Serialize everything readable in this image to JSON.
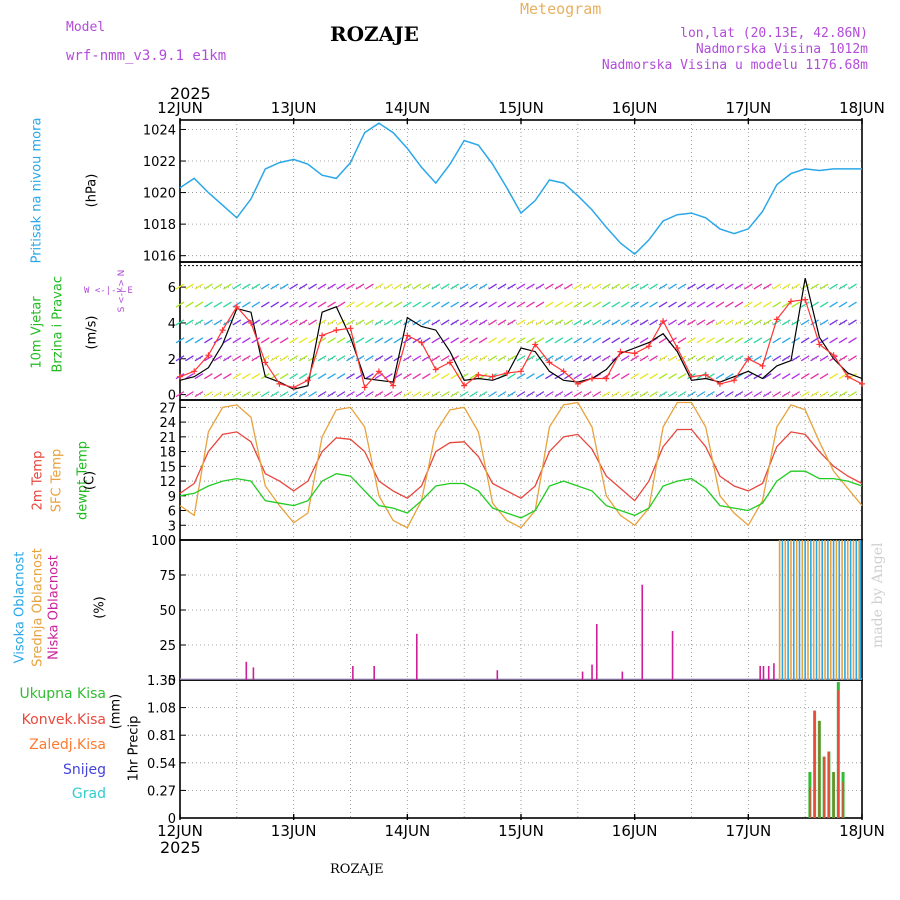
{
  "header": {
    "model_label": "Model",
    "model_name": "wrf-nmm_v3.9.1 e1km",
    "location": "ROZAJE",
    "meteogram_label": "Meteogram",
    "coords": "lon,lat (20.13E, 42.86N)",
    "altitude": "Nadmorska Visina 1012m",
    "model_altitude": "Nadmorska Visina u modelu 1176.68m"
  },
  "time_axis": {
    "year": "2025",
    "days": [
      "12JUN",
      "13JUN",
      "14JUN",
      "15JUN",
      "16JUN",
      "17JUN",
      "18JUN"
    ]
  },
  "footer": {
    "station": "ROZAJE",
    "credit": "made by Angel"
  },
  "colors": {
    "pressure": "#2aa7e8",
    "temp2m": "#e8463c",
    "sfc_temp": "#e8a23c",
    "dewpt": "#22cc22",
    "wind_speed": "#000000",
    "wind_gust": "#ff3333",
    "cloud_high": "#29a7e8",
    "cloud_mid": "#e8a23c",
    "cloud_low": "#cc1f99",
    "precip_total": "#33bb33",
    "precip_conv": "#e84a3c",
    "precip_frz": "#ff7a2e",
    "snow": "#4444dd",
    "hail": "#33cccc"
  },
  "chart_data": [
    {
      "type": "line",
      "name": "pressure",
      "ylabel_left": "Pritisak na nivou mora",
      "ylabel_unit": "(hPa)",
      "ylim": [
        1015.6,
        1024.6
      ],
      "yticks": [
        1016,
        1018,
        1020,
        1022,
        1024
      ],
      "x": [
        0,
        3,
        6,
        9,
        12,
        15,
        18,
        21,
        24,
        27,
        30,
        33,
        36,
        39,
        42,
        45,
        48,
        51,
        54,
        57,
        60,
        63,
        66,
        69,
        72,
        75,
        78,
        81,
        84,
        87,
        90,
        93,
        96,
        99,
        102,
        105,
        108,
        111,
        114,
        117,
        120,
        123,
        126,
        129,
        132,
        135,
        138,
        141,
        144
      ],
      "series": [
        {
          "values": [
            1020.3,
            1020.9,
            1020.0,
            1019.2,
            1018.4,
            1019.6,
            1021.5,
            1021.9,
            1022.1,
            1021.8,
            1021.1,
            1020.9,
            1021.9,
            1023.8,
            1024.4,
            1023.8,
            1022.8,
            1021.6,
            1020.6,
            1021.8,
            1023.3,
            1023.0,
            1021.8,
            1020.3,
            1018.7,
            1019.5,
            1020.8,
            1020.6,
            1019.8,
            1018.9,
            1017.8,
            1016.8,
            1016.1,
            1017.0,
            1018.2,
            1018.6,
            1018.7,
            1018.4,
            1017.7,
            1017.4,
            1017.7,
            1018.8,
            1020.5,
            1021.2,
            1021.5,
            1021.4,
            1021.5,
            1021.5,
            1021.5
          ]
        }
      ]
    },
    {
      "type": "line",
      "name": "wind",
      "ylabel_left": "10m Vjetar",
      "ylabel_right": "Brzina i Pravac",
      "ylabel_unit": "(m/s)",
      "compass": "W <-|-> E",
      "compass_v": "S <-|-> N",
      "ylim": [
        -0.3,
        7.4
      ],
      "yticks": [
        0,
        2,
        4,
        6
      ],
      "x": [
        0,
        3,
        6,
        9,
        12,
        15,
        18,
        21,
        24,
        27,
        30,
        33,
        36,
        39,
        42,
        45,
        48,
        51,
        54,
        57,
        60,
        63,
        66,
        69,
        72,
        75,
        78,
        81,
        84,
        87,
        90,
        93,
        96,
        99,
        102,
        105,
        108,
        111,
        114,
        117,
        120,
        123,
        126,
        129,
        132,
        135,
        138,
        141,
        144
      ],
      "series": [
        {
          "name": "speed",
          "values": [
            0.8,
            1.0,
            1.5,
            2.8,
            4.8,
            4.6,
            1.0,
            0.7,
            0.3,
            0.5,
            4.6,
            4.9,
            3.2,
            0.9,
            0.8,
            0.7,
            4.3,
            3.8,
            3.6,
            2.4,
            0.8,
            0.9,
            0.8,
            1.1,
            2.6,
            2.4,
            1.3,
            0.8,
            0.7,
            0.9,
            1.4,
            2.3,
            2.6,
            2.9,
            3.4,
            2.4,
            0.8,
            0.9,
            0.7,
            1.0,
            1.3,
            0.9,
            1.6,
            1.9,
            6.5,
            3.2,
            2.0,
            1.2,
            0.9
          ]
        },
        {
          "name": "gust",
          "values": [
            1.0,
            1.3,
            2.2,
            3.6,
            4.9,
            4.0,
            1.8,
            0.6,
            0.4,
            0.8,
            3.3,
            3.6,
            3.7,
            0.4,
            1.3,
            0.5,
            3.3,
            2.9,
            1.4,
            1.8,
            0.5,
            1.1,
            1.0,
            1.2,
            1.3,
            2.8,
            1.8,
            1.3,
            0.6,
            0.9,
            0.9,
            2.4,
            2.3,
            2.7,
            4.1,
            2.6,
            1.0,
            1.1,
            0.6,
            0.8,
            2.0,
            1.6,
            4.2,
            5.2,
            5.3,
            2.8,
            2.2,
            1.0,
            0.6
          ]
        }
      ]
    },
    {
      "type": "line",
      "name": "temperature",
      "ylabel_left": "2m Temp",
      "ylabel_mid": "SFC Temp",
      "ylabel_right": "dewpt Temp",
      "ylabel_unit": "(C)",
      "ylim": [
        0,
        28.5
      ],
      "yticks": [
        0,
        3,
        6,
        9,
        12,
        15,
        18,
        21,
        24,
        27
      ],
      "x": [
        0,
        3,
        6,
        9,
        12,
        15,
        18,
        21,
        24,
        27,
        30,
        33,
        36,
        39,
        42,
        45,
        48,
        51,
        54,
        57,
        60,
        63,
        66,
        69,
        72,
        75,
        78,
        81,
        84,
        87,
        90,
        93,
        96,
        99,
        102,
        105,
        108,
        111,
        114,
        117,
        120,
        123,
        126,
        129,
        132,
        135,
        138,
        141,
        144
      ],
      "series": [
        {
          "name": "2m Temp",
          "values": [
            9.5,
            11.5,
            18.0,
            21.5,
            22.0,
            20.0,
            13.5,
            12.0,
            10.0,
            12.0,
            18.0,
            20.8,
            20.5,
            18.0,
            12.0,
            10.0,
            8.5,
            11.0,
            18.0,
            19.8,
            20.0,
            17.0,
            11.5,
            10.0,
            8.5,
            11.0,
            18.0,
            21.0,
            21.5,
            18.5,
            13.0,
            10.5,
            8.0,
            12.0,
            19.0,
            22.5,
            22.5,
            19.0,
            13.0,
            11.0,
            10.0,
            11.5,
            19.0,
            22.0,
            21.5,
            18.0,
            15.0,
            13.0,
            11.5
          ]
        },
        {
          "name": "SFC Temp",
          "values": [
            7.0,
            5.0,
            22.0,
            27.0,
            27.5,
            25.0,
            11.0,
            7.0,
            3.5,
            5.5,
            21.0,
            26.5,
            27.0,
            23.0,
            9.0,
            4.0,
            2.5,
            8.0,
            22.0,
            26.5,
            27.0,
            22.0,
            7.5,
            4.0,
            2.5,
            6.0,
            23.0,
            27.5,
            28.0,
            23.0,
            9.0,
            5.0,
            3.0,
            6.5,
            23.0,
            28.0,
            28.0,
            23.0,
            9.0,
            5.5,
            3.0,
            8.0,
            23.0,
            27.5,
            26.5,
            20.0,
            14.0,
            10.5,
            7.0
          ]
        },
        {
          "name": "dewpt Temp",
          "values": [
            9.0,
            9.5,
            11.0,
            12.0,
            12.5,
            12.0,
            8.0,
            7.5,
            7.0,
            8.0,
            12.0,
            13.5,
            13.0,
            10.0,
            7.0,
            6.5,
            5.5,
            8.0,
            11.0,
            11.5,
            11.5,
            10.0,
            6.5,
            5.5,
            4.5,
            6.0,
            11.0,
            12.0,
            11.0,
            10.0,
            7.0,
            6.0,
            5.0,
            6.5,
            11.0,
            12.0,
            12.5,
            10.5,
            7.0,
            6.5,
            6.0,
            7.5,
            12.0,
            14.0,
            14.0,
            12.5,
            12.5,
            12.0,
            11.0
          ]
        }
      ]
    },
    {
      "type": "bar",
      "name": "clouds",
      "ylabel_left": "Visoka Oblacnost",
      "ylabel_mid": "Srednja Oblacnost",
      "ylabel_right": "Niska Oblacnost",
      "ylabel_unit": "(%)",
      "ylim": [
        0,
        100
      ],
      "yticks": [
        0,
        25,
        50,
        75,
        100
      ],
      "series": [
        {
          "name": "Niska Oblacnost",
          "x": [
            14,
            15.5,
            36.5,
            41,
            50,
            67,
            85,
            87,
            88,
            93.4,
            97.6,
            104,
            122.5,
            123.2,
            124.3,
            125.4
          ],
          "values": [
            13,
            9,
            10,
            10,
            33,
            7,
            6,
            11,
            40,
            6,
            68,
            35,
            10,
            10,
            10,
            12
          ]
        },
        {
          "name": "Srednja Oblacnost",
          "x": [
            126.6,
            127.8,
            129,
            130.2,
            131.4,
            132.6,
            133.8,
            135,
            136.2,
            137.4,
            138.6,
            139.8,
            141,
            142.2,
            143.4
          ],
          "values": [
            100,
            100,
            100,
            100,
            100,
            100,
            100,
            100,
            100,
            100,
            100,
            100,
            100,
            100,
            100
          ]
        },
        {
          "name": "Visoka Oblacnost",
          "x": [
            127.2,
            128.4,
            129.6,
            130.8,
            132,
            133.2,
            134.4,
            135.6,
            136.8,
            138,
            139.2,
            140.4,
            141.6,
            142.8,
            143.7
          ],
          "values": [
            100,
            100,
            100,
            100,
            100,
            100,
            100,
            100,
            100,
            100,
            100,
            100,
            100,
            100,
            100
          ]
        }
      ]
    },
    {
      "type": "bar",
      "name": "precipitation",
      "ylabel_left": "1hr Precip",
      "ylabel_unit": "(mm)",
      "legend": [
        "Ukupna Kisa",
        "Konvek.Kisa",
        "Zaledj.Kisa",
        "Snijeg",
        "Grad"
      ],
      "ylim": [
        0,
        1.35
      ],
      "yticks": [
        0,
        0.27,
        0.54,
        0.81,
        1.08,
        1.35
      ],
      "series": [
        {
          "name": "Ukupna Kisa",
          "x": [
            133,
            134,
            135,
            136,
            137,
            138,
            139,
            140
          ],
          "values": [
            0.45,
            1.05,
            0.95,
            0.6,
            0.65,
            0.45,
            1.33,
            0.45
          ]
        },
        {
          "name": "Konvek.Kisa",
          "x": [
            133,
            134,
            135,
            136,
            137,
            138,
            139,
            140
          ],
          "values": [
            0.3,
            1.05,
            0.95,
            0.6,
            0.65,
            0.45,
            1.25,
            0.35
          ]
        }
      ]
    }
  ]
}
